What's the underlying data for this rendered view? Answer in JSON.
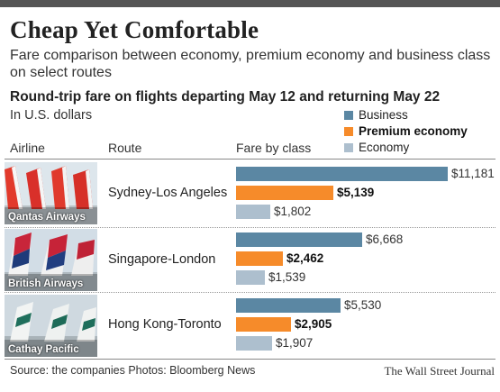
{
  "header": {
    "title": "Cheap Yet Comfortable",
    "subtitle": "Fare comparison between economy, premium economy and business class on select routes",
    "chart_heading": "Round-trip fare on flights departing May 12 and returning May 22",
    "unit": "In U.S. dollars"
  },
  "legend": [
    {
      "label": "Business",
      "color": "#5b87a3",
      "bold": false
    },
    {
      "label": "Premium economy",
      "color": "#f68b2a",
      "bold": true
    },
    {
      "label": "Economy",
      "color": "#adbfce",
      "bold": false
    }
  ],
  "columns": {
    "airline": "Airline",
    "route": "Route",
    "fare": "Fare by class"
  },
  "chart_data": {
    "type": "bar",
    "orientation": "horizontal",
    "categories": [
      "Sydney-Los Angeles",
      "Singapore-London",
      "Hong Kong-Toronto"
    ],
    "airlines": [
      "Qantas Airways",
      "British Airways",
      "Cathay Pacific"
    ],
    "series": [
      {
        "name": "Business",
        "color": "#5b87a3",
        "values": [
          11181,
          6668,
          5530
        ],
        "labels": [
          "$11,181",
          "$6,668",
          "$5,530"
        ],
        "bold": false
      },
      {
        "name": "Premium economy",
        "color": "#f68b2a",
        "values": [
          5139,
          2462,
          2905
        ],
        "labels": [
          "$5,139",
          "$2,462",
          "$2,905"
        ],
        "bold": true
      },
      {
        "name": "Economy",
        "color": "#adbfce",
        "values": [
          1802,
          1539,
          1907
        ],
        "labels": [
          "$1,802",
          "$1,539",
          "$1,907"
        ],
        "bold": false
      }
    ],
    "xlim": [
      0,
      11181
    ],
    "grid": false,
    "legend_position": "top-right"
  },
  "footer": {
    "source": "Source: the companies Photos: Bloomberg News",
    "credit": "The Wall Street Journal"
  }
}
